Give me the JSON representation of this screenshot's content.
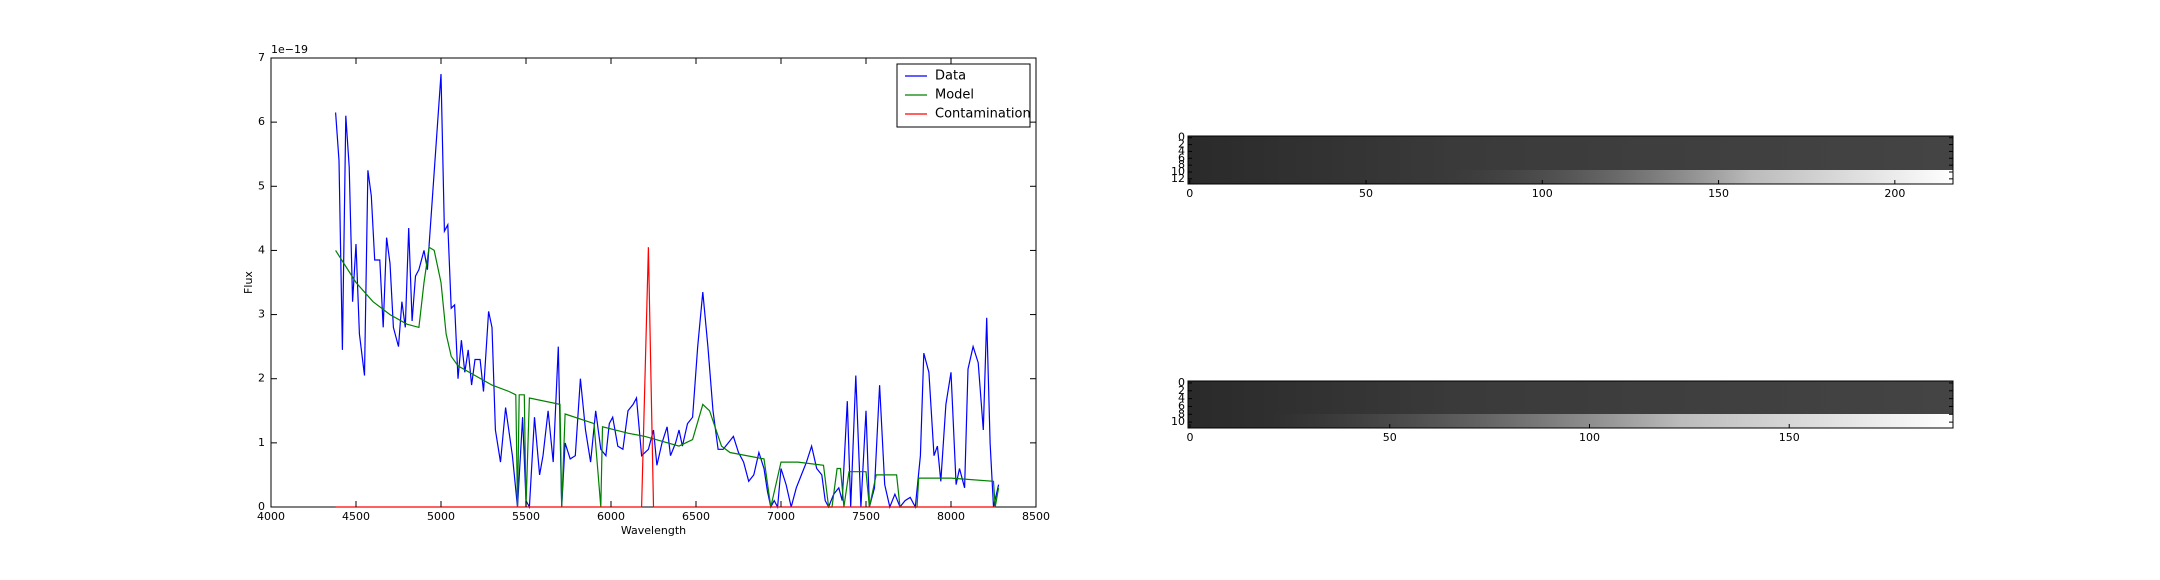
{
  "chart_data": [
    {
      "type": "line",
      "xlabel": "Wavelength",
      "ylabel": "Flux",
      "y_offset_label": "1e−19",
      "xlim": [
        4000,
        8500
      ],
      "xticks": [
        4000,
        4500,
        5000,
        5500,
        6000,
        6500,
        7000,
        7500,
        8000,
        8500
      ],
      "ylim": [
        0,
        7
      ],
      "yticks": [
        0,
        1,
        2,
        3,
        4,
        5,
        6,
        7
      ],
      "legend": "upper right",
      "series": [
        {
          "name": "Data",
          "color": "#0000ff",
          "x": [
            4380,
            4400,
            4420,
            4440,
            4460,
            4480,
            4500,
            4520,
            4550,
            4570,
            4590,
            4610,
            4640,
            4660,
            4680,
            4700,
            4720,
            4750,
            4770,
            4790,
            4810,
            4830,
            4850,
            4870,
            4900,
            4920,
            5000,
            5020,
            5040,
            5060,
            5080,
            5100,
            5120,
            5140,
            5160,
            5180,
            5200,
            5230,
            5250,
            5280,
            5300,
            5320,
            5350,
            5380,
            5420,
            5450,
            5480,
            5500,
            5520,
            5550,
            5580,
            5600,
            5630,
            5660,
            5690,
            5710,
            5730,
            5760,
            5790,
            5820,
            5850,
            5880,
            5910,
            5940,
            5970,
            5990,
            6010,
            6040,
            6070,
            6100,
            6130,
            6150,
            6180,
            6220,
            6250,
            6270,
            6300,
            6330,
            6350,
            6380,
            6400,
            6420,
            6450,
            6480,
            6510,
            6540,
            6570,
            6600,
            6630,
            6660,
            6690,
            6720,
            6750,
            6780,
            6810,
            6840,
            6870,
            6900,
            6920,
            6940,
            6960,
            6980,
            7000,
            7030,
            7060,
            7090,
            7120,
            7150,
            7180,
            7210,
            7240,
            7260,
            7280,
            7310,
            7340,
            7360,
            7390,
            7410,
            7440,
            7470,
            7500,
            7520,
            7550,
            7580,
            7610,
            7640,
            7670,
            7700,
            7730,
            7760,
            7790,
            7820,
            7840,
            7870,
            7900,
            7920,
            7940,
            7970,
            8000,
            8030,
            8050,
            8080,
            8100,
            8130,
            8160,
            8190,
            8210,
            8230,
            8250,
            8280
          ],
          "values": [
            6.15,
            5.4,
            2.45,
            6.1,
            5.3,
            3.2,
            4.1,
            2.7,
            2.05,
            5.25,
            4.85,
            3.85,
            3.85,
            2.8,
            4.2,
            3.8,
            2.8,
            2.5,
            3.2,
            2.8,
            4.35,
            2.9,
            3.6,
            3.7,
            4.0,
            3.7,
            6.75,
            4.3,
            4.4,
            3.1,
            3.15,
            2.0,
            2.6,
            2.1,
            2.45,
            1.9,
            2.3,
            2.3,
            1.8,
            3.05,
            2.8,
            1.2,
            0.7,
            1.55,
            0.8,
            0.0,
            1.4,
            0.1,
            0.0,
            1.4,
            0.5,
            0.8,
            1.5,
            0.7,
            2.5,
            0.0,
            1.0,
            0.75,
            0.8,
            2.0,
            1.2,
            0.7,
            1.5,
            0.9,
            0.8,
            1.3,
            1.4,
            0.95,
            0.9,
            1.5,
            1.6,
            1.7,
            0.8,
            0.9,
            1.2,
            0.65,
            1.0,
            1.25,
            0.8,
            1.0,
            1.2,
            0.95,
            1.3,
            1.4,
            2.5,
            3.35,
            2.5,
            1.5,
            0.9,
            0.9,
            1.0,
            1.1,
            0.85,
            0.7,
            0.4,
            0.5,
            0.85,
            0.6,
            0.25,
            0.0,
            0.1,
            0.0,
            0.6,
            0.35,
            0.0,
            0.3,
            0.5,
            0.7,
            0.95,
            0.6,
            0.5,
            0.1,
            0.0,
            0.2,
            0.3,
            0.1,
            1.65,
            0.0,
            2.05,
            0.0,
            1.5,
            0.0,
            0.3,
            1.9,
            0.35,
            0.0,
            0.2,
            0.0,
            0.1,
            0.15,
            0.0,
            0.8,
            2.4,
            2.1,
            0.8,
            0.95,
            0.4,
            1.6,
            2.1,
            0.35,
            0.6,
            0.3,
            2.15,
            2.5,
            2.25,
            1.2,
            2.95,
            1.0,
            0.0,
            0.35
          ]
        },
        {
          "name": "Model",
          "color": "#008000",
          "x": [
            4380,
            4500,
            4600,
            4700,
            4800,
            4870,
            4900,
            4930,
            4960,
            5000,
            5030,
            5060,
            5100,
            5200,
            5300,
            5400,
            5440,
            5450,
            5460,
            5490,
            5500,
            5520,
            5700,
            5710,
            5730,
            5900,
            5940,
            5950,
            6100,
            6200,
            6400,
            6480,
            6540,
            6580,
            6650,
            6700,
            6900,
            6940,
            7000,
            7100,
            7250,
            7280,
            7300,
            7330,
            7350,
            7370,
            7400,
            7500,
            7520,
            7560,
            7680,
            7700,
            7800,
            7810,
            8000,
            8250,
            8260,
            8280
          ],
          "values": [
            4.0,
            3.5,
            3.2,
            3.0,
            2.85,
            2.8,
            3.5,
            4.05,
            4.0,
            3.5,
            2.7,
            2.35,
            2.2,
            2.05,
            1.9,
            1.8,
            1.75,
            0.0,
            1.75,
            1.75,
            0.0,
            1.7,
            1.6,
            0.0,
            1.45,
            1.3,
            0.0,
            1.25,
            1.15,
            1.1,
            0.95,
            1.05,
            1.6,
            1.5,
            0.95,
            0.85,
            0.75,
            0.0,
            0.7,
            0.7,
            0.65,
            0.0,
            0.0,
            0.6,
            0.6,
            0.0,
            0.55,
            0.55,
            0.0,
            0.5,
            0.5,
            0.0,
            0.0,
            0.45,
            0.45,
            0.4,
            0.0,
            0.3
          ]
        },
        {
          "name": "Contamination",
          "color": "#ff0000",
          "x": [
            4380,
            6180,
            6220,
            6250,
            8260
          ],
          "values": [
            0,
            0,
            4.05,
            0,
            0
          ]
        }
      ]
    },
    {
      "type": "image",
      "xlim": [
        -0.5,
        216.5
      ],
      "xticks": [
        0,
        50,
        100,
        150,
        200
      ],
      "ylim": [
        -0.5,
        13.5
      ],
      "yticks": [
        0,
        2,
        4,
        6,
        8,
        10,
        12
      ]
    },
    {
      "type": "image",
      "xlim": [
        -0.5,
        191
      ],
      "xticks": [
        0,
        50,
        100,
        150
      ],
      "ylim": [
        -0.5,
        11.5
      ],
      "yticks": [
        0,
        2,
        4,
        6,
        8,
        10
      ]
    }
  ]
}
